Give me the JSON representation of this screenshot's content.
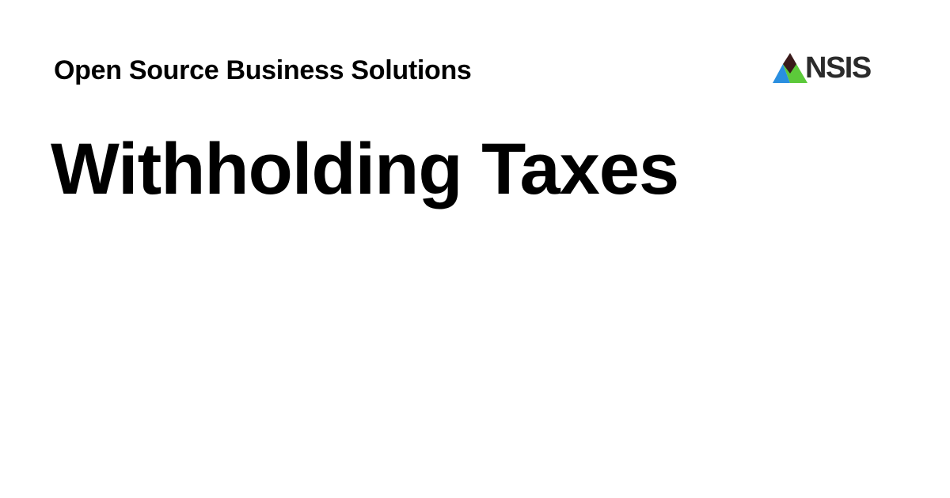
{
  "header": {
    "site_name": "Open Source Business Solutions",
    "logo_text": "NSIS"
  },
  "page": {
    "title": "Withholding Taxes"
  },
  "colors": {
    "background": "#ffffff",
    "text": "#000000",
    "logo_text": "#2b2b2b",
    "logo_blue": "#2a8fe0",
    "logo_green": "#5cc93a",
    "logo_dark": "#3a1a1a"
  },
  "icons": [
    "brand-logo-icon"
  ]
}
